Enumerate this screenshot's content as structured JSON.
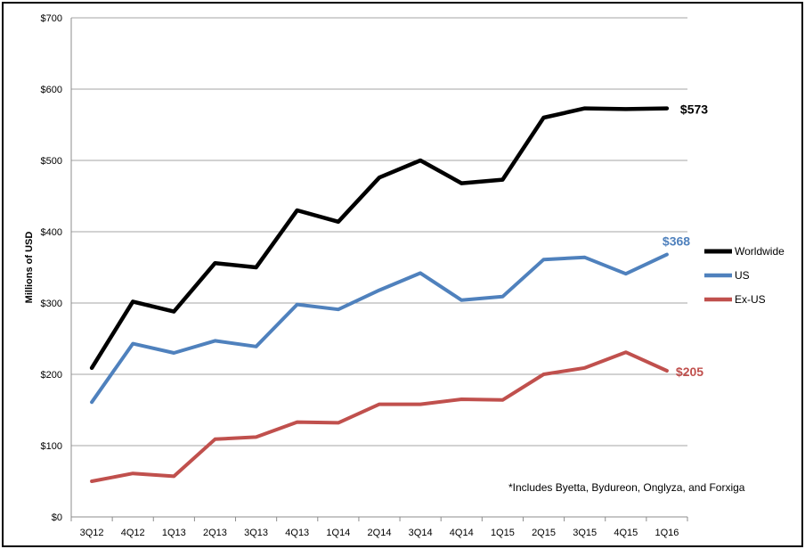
{
  "chart_data": {
    "type": "line",
    "ylabel": "Millions of USD",
    "xlabel": "",
    "title": "",
    "ylim": [
      0,
      700
    ],
    "yticks": [
      "$0",
      "$100",
      "$200",
      "$300",
      "$400",
      "$500",
      "$600",
      "$700"
    ],
    "yticks_values": [
      0,
      100,
      200,
      300,
      400,
      500,
      600,
      700
    ],
    "grid": true,
    "legend_position": "right",
    "categories": [
      "3Q12",
      "4Q12",
      "1Q13",
      "2Q13",
      "3Q13",
      "4Q13",
      "1Q14",
      "2Q14",
      "3Q14",
      "4Q14",
      "1Q15",
      "2Q15",
      "3Q15",
      "4Q15",
      "1Q16"
    ],
    "series": [
      {
        "name": "Worldwide",
        "color": "#000000",
        "values": [
          209,
          302,
          288,
          356,
          350,
          430,
          414,
          476,
          500,
          468,
          473,
          560,
          573,
          572,
          573
        ],
        "end_label": "$573"
      },
      {
        "name": "US",
        "color": "#4f81bd",
        "values": [
          161,
          243,
          230,
          247,
          239,
          298,
          291,
          318,
          342,
          304,
          309,
          361,
          364,
          341,
          368
        ],
        "end_label": "$368"
      },
      {
        "name": "Ex-US",
        "color": "#c0504d",
        "values": [
          50,
          61,
          57,
          109,
          112,
          133,
          132,
          158,
          158,
          165,
          164,
          200,
          209,
          231,
          205
        ],
        "end_label": "$205"
      }
    ],
    "annotation": "*Includes Byetta, Bydureon, Onglyza, and Forxiga"
  }
}
